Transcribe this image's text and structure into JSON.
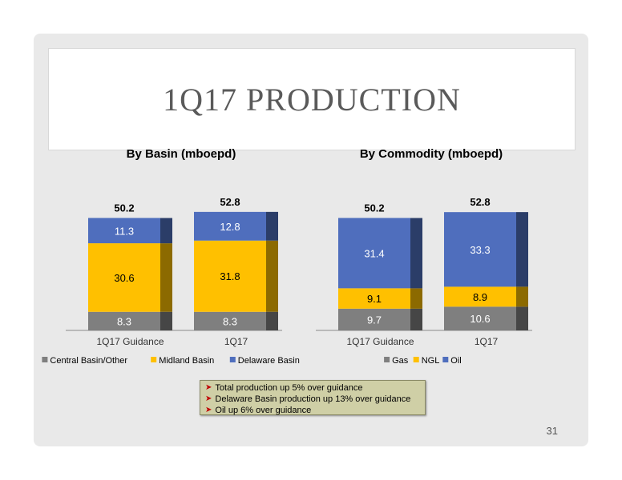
{
  "title": "1Q17 PRODUCTION",
  "page_number": "31",
  "bullets": [
    "Total production up 5% over guidance",
    "Delaware Basin production up 13% over guidance",
    "Oil up 6% over guidance"
  ],
  "colors": {
    "central": "#7f7f7f",
    "midland": "#ffc000",
    "delaware": "#4f6ebd",
    "gas": "#7f7f7f",
    "ngl": "#ffc000",
    "oil": "#4f6ebd"
  },
  "chart_data": [
    {
      "type": "bar",
      "stacked": true,
      "title": "By Basin (mboepd)",
      "categories": [
        "1Q17 Guidance",
        "1Q17"
      ],
      "totals": [
        "50.2",
        "52.8"
      ],
      "series": [
        {
          "name": "Central Basin/Other",
          "values": [
            8.3,
            8.3
          ]
        },
        {
          "name": "Midland Basin",
          "values": [
            30.6,
            31.8
          ]
        },
        {
          "name": "Delaware Basin",
          "values": [
            11.3,
            12.8
          ]
        }
      ],
      "legend": "bottom"
    },
    {
      "type": "bar",
      "stacked": true,
      "title": "By Commodity (mboepd)",
      "categories": [
        "1Q17 Guidance",
        "1Q17"
      ],
      "totals": [
        "50.2",
        "52.8"
      ],
      "series": [
        {
          "name": "Gas",
          "values": [
            9.7,
            10.6
          ]
        },
        {
          "name": "NGL",
          "values": [
            9.1,
            8.9
          ]
        },
        {
          "name": "Oil",
          "values": [
            31.4,
            33.3
          ]
        }
      ],
      "legend": "bottom"
    }
  ]
}
